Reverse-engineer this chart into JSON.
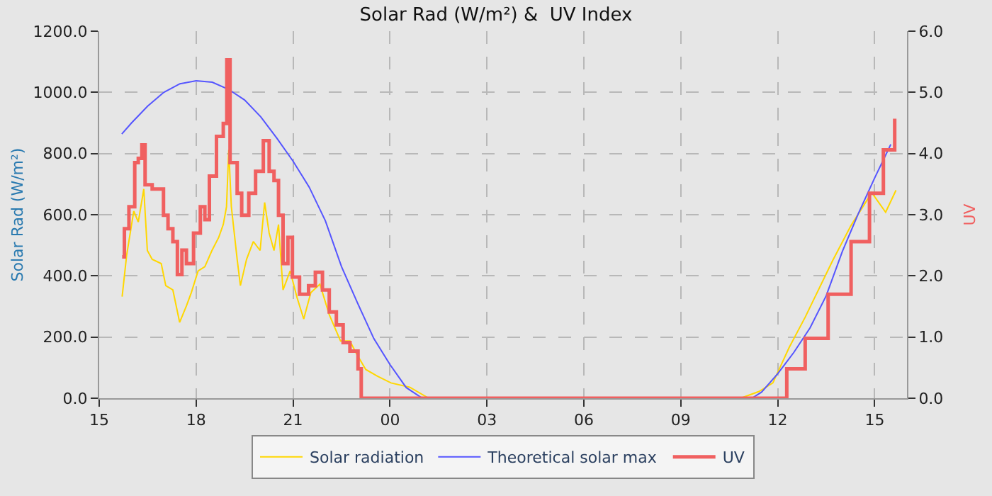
{
  "chart_data": {
    "type": "line",
    "title": "Solar Rad (W/m²) &  UV Index",
    "ylabel": "Solar Rad (W/m²)",
    "y2label": "UV",
    "xlim": [
      15,
      40
    ],
    "xticks": [
      {
        "value": 15,
        "label": "15"
      },
      {
        "value": 18,
        "label": "18"
      },
      {
        "value": 21,
        "label": "21"
      },
      {
        "value": 24,
        "label": "00"
      },
      {
        "value": 27,
        "label": "03"
      },
      {
        "value": 30,
        "label": "06"
      },
      {
        "value": 33,
        "label": "09"
      },
      {
        "value": 36,
        "label": "12"
      },
      {
        "value": 39,
        "label": "15"
      }
    ],
    "ylim": [
      0,
      1200
    ],
    "yticks": [
      {
        "value": 0,
        "label": "0.0"
      },
      {
        "value": 200,
        "label": "200.0"
      },
      {
        "value": 400,
        "label": "400.0"
      },
      {
        "value": 600,
        "label": "600.0"
      },
      {
        "value": 800,
        "label": "800.0"
      },
      {
        "value": 1000,
        "label": "1000.0"
      },
      {
        "value": 1200,
        "label": "1200.0"
      }
    ],
    "y2lim": [
      0,
      6
    ],
    "y2ticks": [
      {
        "value": 0,
        "label": "0.0"
      },
      {
        "value": 1,
        "label": "1.0"
      },
      {
        "value": 2,
        "label": "2.0"
      },
      {
        "value": 3,
        "label": "3.0"
      },
      {
        "value": 4,
        "label": "4.0"
      },
      {
        "value": 5,
        "label": "5.0"
      },
      {
        "value": 6,
        "label": "6.0"
      }
    ],
    "grid": true,
    "legend": "bottom",
    "line_style": "solid",
    "marker": "none",
    "series": [
      {
        "name": "Solar radiation",
        "color": "#ffd700",
        "x": [
          15.71,
          15.85,
          16.07,
          16.21,
          16.38,
          16.49,
          16.64,
          16.92,
          17.06,
          17.28,
          17.49,
          17.7,
          17.85,
          18.06,
          18.27,
          18.49,
          18.7,
          18.84,
          18.94,
          19.01,
          19.09,
          19.27,
          19.37,
          19.56,
          19.77,
          19.98,
          20.12,
          20.26,
          20.41,
          20.55,
          20.69,
          20.91,
          21.12,
          21.33,
          21.55,
          21.83,
          22.12,
          22.47,
          22.76,
          22.97,
          23.25,
          23.61,
          24.03,
          24.61,
          25.2,
          34.85,
          35.42,
          35.85,
          36.35,
          36.85,
          37.7,
          38.27,
          38.91,
          39.34,
          39.66
        ],
        "values": [
          332,
          468,
          612,
          576,
          684,
          483,
          454,
          440,
          368,
          354,
          248,
          302,
          345,
          416,
          430,
          483,
          526,
          568,
          626,
          812,
          626,
          454,
          368,
          454,
          512,
          483,
          640,
          540,
          483,
          568,
          354,
          416,
          330,
          259,
          345,
          373,
          273,
          187,
          187,
          144,
          94,
          72,
          50,
          36,
          0,
          0,
          22,
          50,
          165,
          265,
          450,
          565,
          672,
          608,
          680
        ]
      },
      {
        "name": "Theoretical solar max",
        "color": "#5555ff",
        "x": [
          15.7,
          16,
          16.5,
          17,
          17.5,
          18,
          18.5,
          19,
          19.5,
          20,
          20.5,
          21,
          21.5,
          22,
          22.5,
          23,
          23.5,
          24,
          24.5,
          25,
          35.2,
          35.5,
          36,
          36.5,
          37,
          37.5,
          38,
          38.5,
          39,
          39.5
        ],
        "values": [
          864,
          900,
          955,
          1000,
          1028,
          1038,
          1033,
          1010,
          975,
          920,
          850,
          775,
          690,
          580,
          430,
          310,
          195,
          110,
          35,
          0,
          0,
          20,
          80,
          150,
          230,
          335,
          480,
          605,
          720,
          830
        ]
      },
      {
        "name": "UV",
        "color": "#f06060",
        "type": "step",
        "axis": "y2",
        "x": [
          15.71,
          15.78,
          15.92,
          16.1,
          16.21,
          16.32,
          16.42,
          16.64,
          16.85,
          16.99,
          17.13,
          17.28,
          17.42,
          17.56,
          17.7,
          17.92,
          18.13,
          18.27,
          18.41,
          18.63,
          18.84,
          18.95,
          19.05,
          19.27,
          19.41,
          19.63,
          19.84,
          20.08,
          20.26,
          20.41,
          20.55,
          20.69,
          20.84,
          20.98,
          21.2,
          21.48,
          21.69,
          21.91,
          22.12,
          22.34,
          22.55,
          22.76,
          23.01,
          23.11,
          36.2,
          36.28,
          36.85,
          37.56,
          38.27,
          38.84,
          39.27,
          39.62
        ],
        "values": [
          2.31,
          2.77,
          3.13,
          3.85,
          3.92,
          4.14,
          3.49,
          3.42,
          3.42,
          2.99,
          2.77,
          2.56,
          2.02,
          2.42,
          2.2,
          2.7,
          3.13,
          2.92,
          3.63,
          4.28,
          4.49,
          5.53,
          3.85,
          3.35,
          2.99,
          3.35,
          3.71,
          4.21,
          3.71,
          3.56,
          2.99,
          2.2,
          2.63,
          1.98,
          1.7,
          1.84,
          2.06,
          1.77,
          1.41,
          1.2,
          0.91,
          0.77,
          0.48,
          0,
          0,
          0.48,
          0.98,
          1.7,
          2.56,
          3.35,
          4.06,
          4.57
        ]
      }
    ]
  }
}
